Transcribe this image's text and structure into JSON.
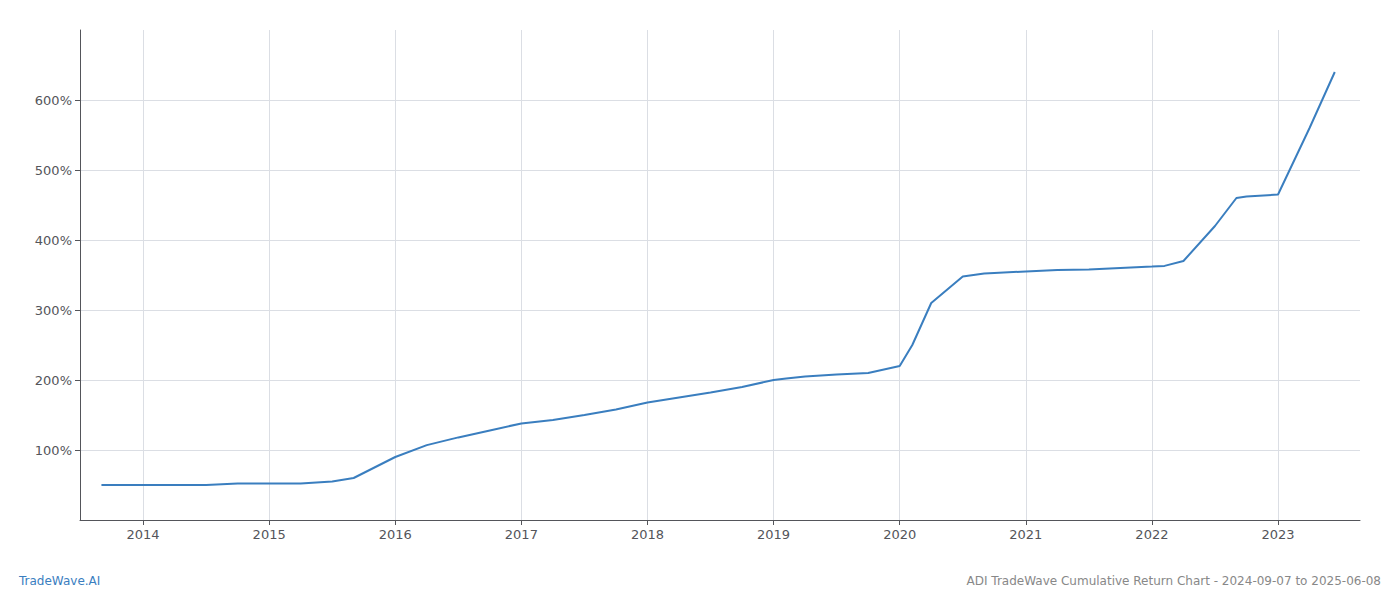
{
  "chart_data": {
    "type": "line",
    "x": [
      2013.67,
      2013.75,
      2014.0,
      2014.25,
      2014.5,
      2014.75,
      2015.0,
      2015.25,
      2015.5,
      2015.67,
      2016.0,
      2016.25,
      2016.5,
      2016.75,
      2017.0,
      2017.25,
      2017.5,
      2017.75,
      2018.0,
      2018.25,
      2018.5,
      2018.75,
      2019.0,
      2019.1,
      2019.25,
      2019.5,
      2019.75,
      2020.0,
      2020.1,
      2020.25,
      2020.5,
      2020.67,
      2020.75,
      2021.0,
      2021.25,
      2021.5,
      2021.75,
      2022.0,
      2022.1,
      2022.25,
      2022.5,
      2022.67,
      2022.75,
      2023.0,
      2023.25,
      2023.45
    ],
    "values": [
      50,
      50,
      50,
      50,
      50,
      52,
      52,
      52,
      55,
      60,
      90,
      107,
      118,
      128,
      138,
      143,
      150,
      158,
      168,
      175,
      182,
      190,
      200,
      202,
      205,
      208,
      210,
      220,
      250,
      310,
      348,
      352,
      353,
      355,
      357,
      358,
      360,
      362,
      363,
      370,
      420,
      460,
      462,
      465,
      560,
      640
    ],
    "color": "#3a7ebf",
    "xlim": [
      2013.5,
      2023.65
    ],
    "xticks": [
      2014,
      2015,
      2016,
      2017,
      2018,
      2019,
      2020,
      2021,
      2022,
      2023
    ],
    "ylim": [
      0,
      700
    ],
    "yticks": [
      {
        "value": 100,
        "label": "100%"
      },
      {
        "value": 200,
        "label": "200%"
      },
      {
        "value": 300,
        "label": "300%"
      },
      {
        "value": 400,
        "label": "400%"
      },
      {
        "value": 500,
        "label": "500%"
      },
      {
        "value": 600,
        "label": "600%"
      }
    ],
    "grid": true,
    "annotations": [
      {
        "text": "TradeWave.AI",
        "color": "#3a7ebf"
      },
      {
        "text": "ADI TradeWave Cumulative Return Chart - 2024-09-07 to 2025-06-08",
        "color": "#888888"
      }
    ]
  }
}
